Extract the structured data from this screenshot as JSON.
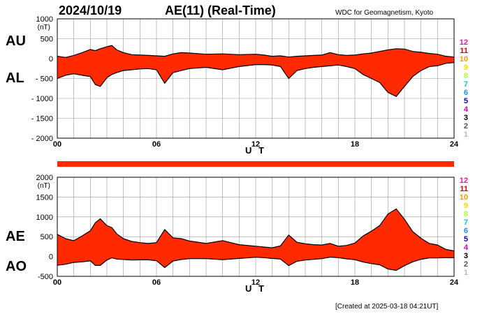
{
  "header": {
    "date": "2024/10/19",
    "title": "AE(11) (Real-Time)",
    "source": "WDC for Geomagnetism, Kyoto"
  },
  "footer": {
    "created": "[Created at 2025-03-18 04:21UT]"
  },
  "legend": {
    "labels": [
      "12",
      "11",
      "10",
      "9",
      "8",
      "7",
      "6",
      "5",
      "4",
      "3",
      "2",
      "1"
    ],
    "colors": [
      "#ff1493",
      "#e60000",
      "#ff9900",
      "#ffd700",
      "#adff2f",
      "#00cccc",
      "#1e90ff",
      "#0000cd",
      "#cc00cc",
      "#000000",
      "#555555",
      "#bbbbbb"
    ]
  },
  "colors": {
    "fill": "#ff2a00",
    "outline": "#000000",
    "grid": "#999999",
    "bar": "#ff2a00"
  },
  "chart_data": [
    {
      "type": "area",
      "name": "AU/AL",
      "labels_upper": "AU",
      "labels_lower": "AL",
      "unit": "(nT)",
      "xlabel": "U T",
      "xlim": [
        0,
        24
      ],
      "ylim": [
        -2000,
        1000
      ],
      "xticks": [
        "00",
        "06",
        "12",
        "18",
        "24"
      ],
      "yticks": [
        "1000",
        "500",
        "0",
        "- 500",
        "- 1000",
        "- 1500",
        "- 2000"
      ],
      "x": [
        0,
        0.5,
        1,
        1.5,
        2,
        2.3,
        2.6,
        3,
        3.3,
        3.6,
        4,
        4.5,
        5,
        5.5,
        6,
        6.5,
        7,
        7.5,
        8,
        9,
        10,
        11,
        12,
        12.5,
        13,
        13.5,
        14,
        14.5,
        15,
        15.5,
        16,
        16.5,
        17,
        17.5,
        18,
        18.5,
        19,
        19.5,
        20,
        20.5,
        21,
        21.5,
        22,
        22.5,
        23,
        23.5,
        24
      ],
      "series": [
        {
          "name": "AU",
          "values": [
            60,
            30,
            80,
            150,
            230,
            200,
            250,
            300,
            330,
            220,
            150,
            100,
            90,
            80,
            70,
            60,
            120,
            150,
            140,
            110,
            120,
            100,
            110,
            90,
            60,
            70,
            40,
            60,
            70,
            80,
            90,
            150,
            100,
            80,
            90,
            120,
            140,
            180,
            220,
            250,
            240,
            180,
            160,
            130,
            110,
            60,
            40
          ]
        },
        {
          "name": "AL",
          "values": [
            -500,
            -420,
            -380,
            -420,
            -450,
            -650,
            -700,
            -480,
            -400,
            -350,
            -300,
            -280,
            -260,
            -250,
            -280,
            -620,
            -350,
            -300,
            -250,
            -220,
            -280,
            -200,
            -150,
            -150,
            -160,
            -200,
            -500,
            -300,
            -250,
            -220,
            -200,
            -180,
            -160,
            -200,
            -250,
            -400,
            -500,
            -600,
            -850,
            -950,
            -700,
            -450,
            -300,
            -200,
            -180,
            -120,
            -100
          ]
        }
      ]
    },
    {
      "type": "area",
      "name": "AE/AO",
      "labels_upper": "AE",
      "labels_lower": "AO",
      "unit": "(nT)",
      "xlabel": "U T",
      "xlim": [
        0,
        24
      ],
      "ylim": [
        -500,
        2000
      ],
      "xticks": [
        "00",
        "06",
        "12",
        "18",
        "24"
      ],
      "yticks": [
        "2000",
        "1500",
        "1000",
        "500",
        "0",
        "-500"
      ],
      "x": [
        0,
        0.5,
        1,
        1.5,
        2,
        2.3,
        2.6,
        3,
        3.3,
        3.6,
        4,
        4.5,
        5,
        5.5,
        6,
        6.5,
        7,
        7.5,
        8,
        9,
        10,
        11,
        12,
        12.5,
        13,
        13.5,
        14,
        14.5,
        15,
        15.5,
        16,
        16.5,
        17,
        17.5,
        18,
        18.5,
        19,
        19.5,
        20,
        20.5,
        21,
        21.5,
        22,
        22.5,
        23,
        23.5,
        24
      ],
      "series": [
        {
          "name": "AE",
          "values": [
            560,
            450,
            400,
            520,
            650,
            850,
            950,
            780,
            730,
            570,
            450,
            380,
            350,
            330,
            350,
            680,
            470,
            450,
            390,
            330,
            400,
            300,
            260,
            240,
            220,
            270,
            540,
            360,
            320,
            300,
            290,
            330,
            260,
            280,
            340,
            520,
            640,
            780,
            1070,
            1200,
            940,
            630,
            460,
            330,
            290,
            180,
            140
          ]
        },
        {
          "name": "AO",
          "values": [
            -220,
            -195,
            -150,
            -135,
            -110,
            -225,
            -225,
            -90,
            -35,
            -65,
            -75,
            -90,
            -85,
            -85,
            -105,
            -280,
            -115,
            -75,
            -55,
            -55,
            -80,
            -50,
            -20,
            -30,
            -50,
            -65,
            -230,
            -120,
            -90,
            -70,
            -55,
            -15,
            -30,
            -60,
            -80,
            -140,
            -180,
            -210,
            -315,
            -350,
            -230,
            -135,
            -70,
            -35,
            -35,
            -30,
            -30
          ]
        }
      ]
    }
  ]
}
